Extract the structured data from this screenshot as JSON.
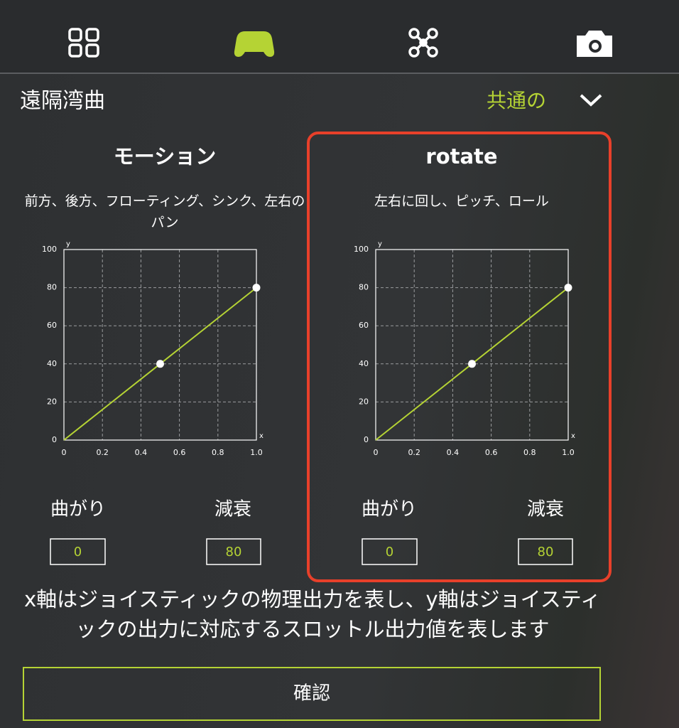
{
  "screen": {
    "header": {
      "title": "遠隔湾曲",
      "mode": "共通の"
    },
    "panels": [
      {
        "fields": [
          {
            "label": "曲がり",
            "value": 0
          },
          {
            "label": "減衰",
            "value": 80
          }
        ]
      },
      {
        "fields": [
          {
            "label": "曲がり",
            "value": 0
          },
          {
            "label": "減衰",
            "value": 80
          }
        ]
      }
    ],
    "note": "x軸はジョイスティックの物理出力を表し、y軸はジョイスティックの出力に対応するスロットル出力値を表します",
    "button": "確認"
  },
  "chart_data": [
    {
      "type": "line",
      "title": "モーション",
      "subtitle": "前方、後方、フローティング、シンク、左右のパン",
      "x_label": "x",
      "y_label": "y",
      "x": [
        0,
        0.5,
        1
      ],
      "values": [
        0,
        40,
        80
      ],
      "color": "#b5d334",
      "xlim": [
        0,
        1
      ],
      "ylim": [
        0,
        100
      ],
      "xticks": [
        0,
        0.2,
        0.4,
        0.6,
        0.8,
        {
          "value": 1,
          "label": "1.0"
        }
      ],
      "yticks": [
        0,
        20,
        40,
        60,
        80,
        100
      ],
      "grid": true
    },
    {
      "type": "line",
      "title": "rotate",
      "subtitle": "左右に回し、ピッチ、ロール",
      "x_label": "x",
      "y_label": "y",
      "x": [
        0,
        0.5,
        1
      ],
      "values": [
        0,
        40,
        80
      ],
      "color": "#b5d334",
      "xlim": [
        0,
        1
      ],
      "ylim": [
        0,
        100
      ],
      "xticks": [
        0,
        0.2,
        0.4,
        0.6,
        0.8,
        {
          "value": 1,
          "label": "1.0"
        }
      ],
      "yticks": [
        0,
        20,
        40,
        60,
        80,
        100
      ],
      "grid": true
    }
  ]
}
